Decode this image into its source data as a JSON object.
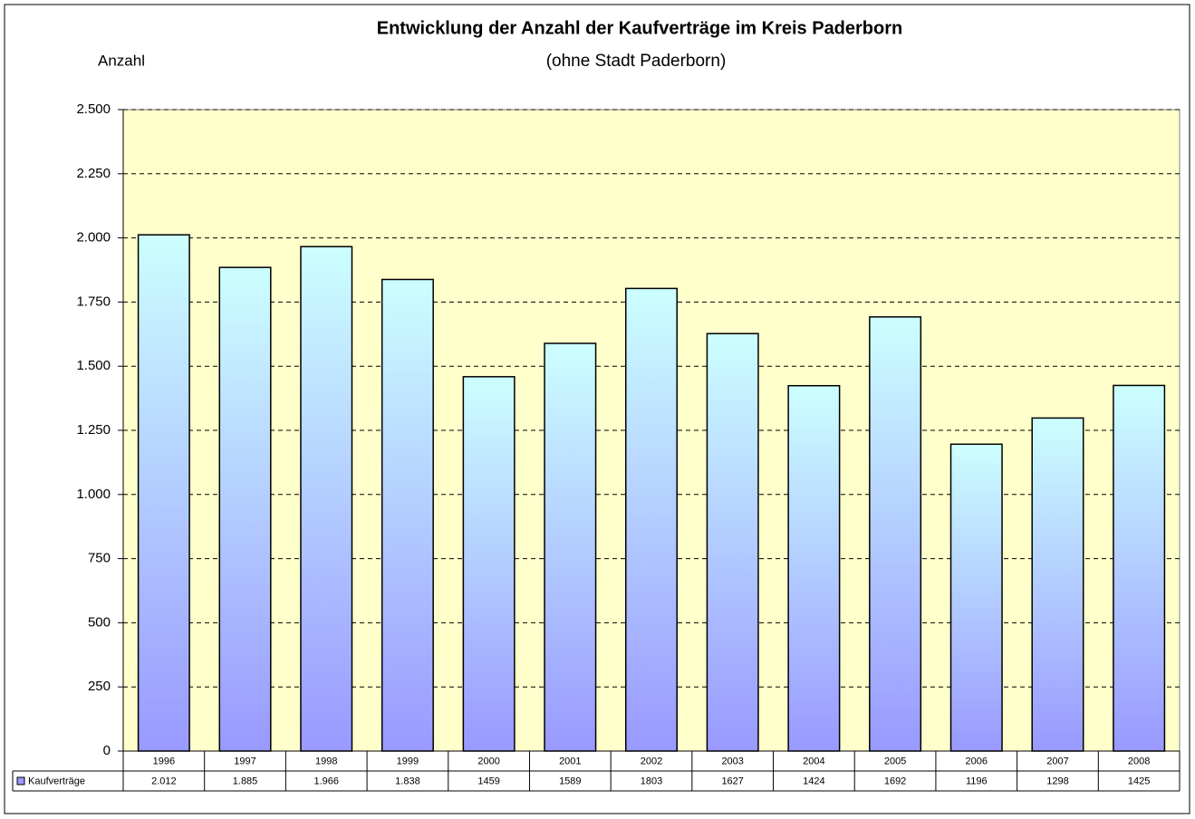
{
  "chart_data": {
    "type": "bar",
    "title": "Entwicklung der Anzahl der Kaufverträge im Kreis Paderborn",
    "subtitle": "(ohne Stadt Paderborn)",
    "y_label": "Anzahl",
    "categories": [
      "1996",
      "1997",
      "1998",
      "1999",
      "2000",
      "2001",
      "2002",
      "2003",
      "2004",
      "2005",
      "2006",
      "2007",
      "2008"
    ],
    "series": [
      {
        "name": "Kaufverträge",
        "color": "#9999ff",
        "gradient": [
          "#ccffff",
          "#9999ff"
        ],
        "values": [
          2012,
          1885,
          1966,
          1838,
          1459,
          1589,
          1803,
          1627,
          1424,
          1692,
          1196,
          1298,
          1425
        ],
        "value_labels": [
          "2.012",
          "1.885",
          "1.966",
          "1.838",
          "1459",
          "1589",
          "1803",
          "1627",
          "1424",
          "1692",
          "1196",
          "1298",
          "1425"
        ]
      }
    ],
    "ylim": [
      0,
      2500
    ],
    "yticks": [
      0,
      250,
      500,
      750,
      {
        "value": 1000,
        "label": "1.000"
      },
      {
        "value": 1250,
        "label": "1.250"
      },
      {
        "value": 1500,
        "label": "1.500"
      },
      {
        "value": 1750,
        "label": "1.750"
      },
      {
        "value": 2000,
        "label": "2.000"
      },
      {
        "value": 2250,
        "label": "2.250"
      },
      {
        "value": 2500,
        "label": "2.500"
      }
    ],
    "grid": true,
    "plot_background": "#ffffcc"
  }
}
